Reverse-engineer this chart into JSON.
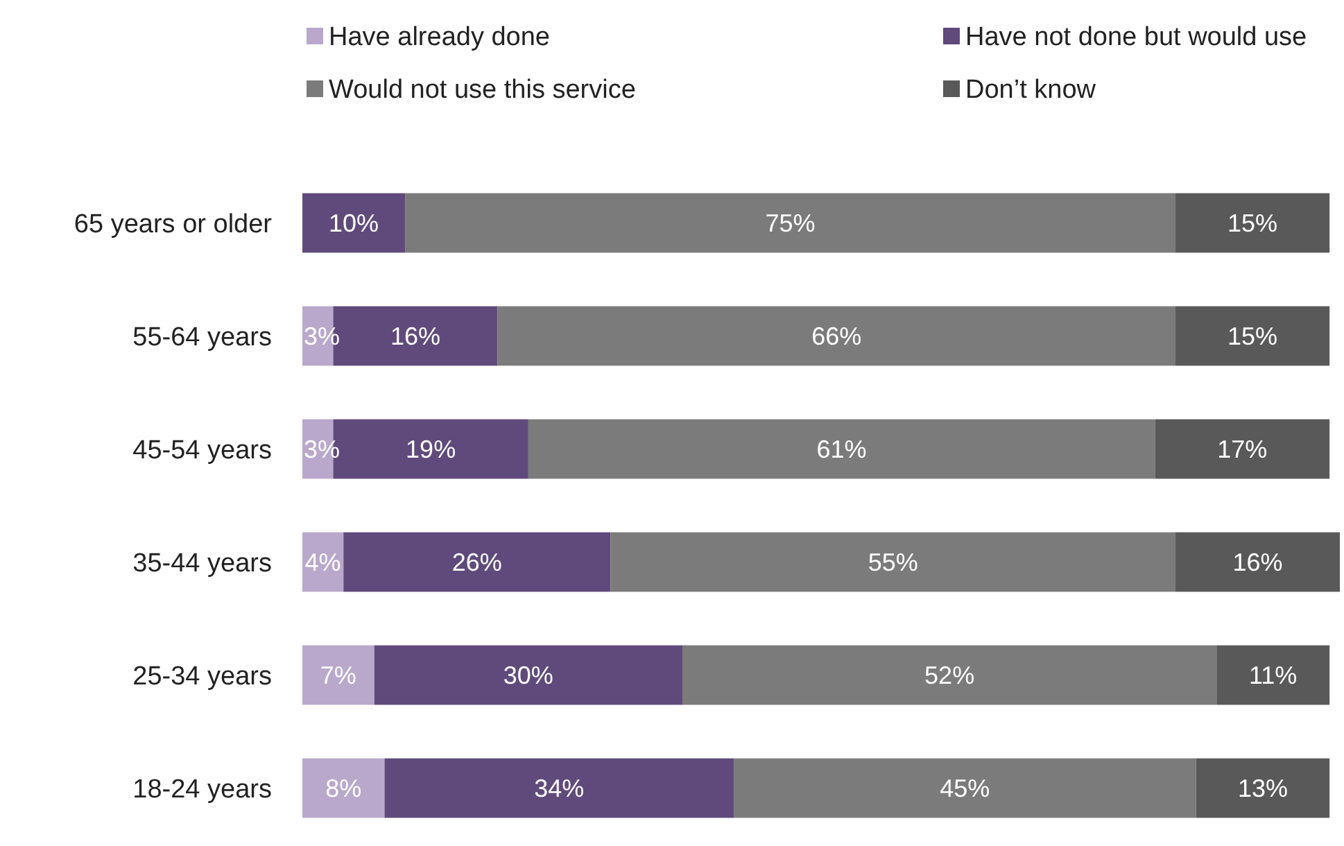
{
  "chart_data": {
    "type": "bar",
    "orientation": "horizontal",
    "stacked": true,
    "legend": "top",
    "categories": [
      "65 years or older",
      "55-64 years",
      "45-54 years",
      "35-44 years",
      "25-34 years",
      "18-24 years"
    ],
    "series": [
      {
        "name": "Have already done",
        "color": "#b9a8cc",
        "values": [
          0,
          3,
          3,
          4,
          7,
          8
        ],
        "value_labels": [
          null,
          "3%",
          "3%",
          "4%",
          "7%",
          "8%"
        ]
      },
      {
        "name": "Have not done but would use",
        "color": "#604a7b",
        "values": [
          10,
          16,
          19,
          26,
          30,
          34
        ],
        "value_labels": [
          "10%",
          "16%",
          "19%",
          "26%",
          "30%",
          "34%"
        ]
      },
      {
        "name": "Would not use this service",
        "color": "#7b7b7b",
        "values": [
          75,
          66,
          61,
          55,
          52,
          45
        ],
        "value_labels": [
          "75%",
          "66%",
          "61%",
          "55%",
          "52%",
          "45%"
        ]
      },
      {
        "name": "Don’t know",
        "color": "#595959",
        "values": [
          15,
          15,
          17,
          16,
          11,
          13
        ],
        "value_labels": [
          "15%",
          "15%",
          "17%",
          "16%",
          "11%",
          "13%"
        ]
      }
    ]
  }
}
